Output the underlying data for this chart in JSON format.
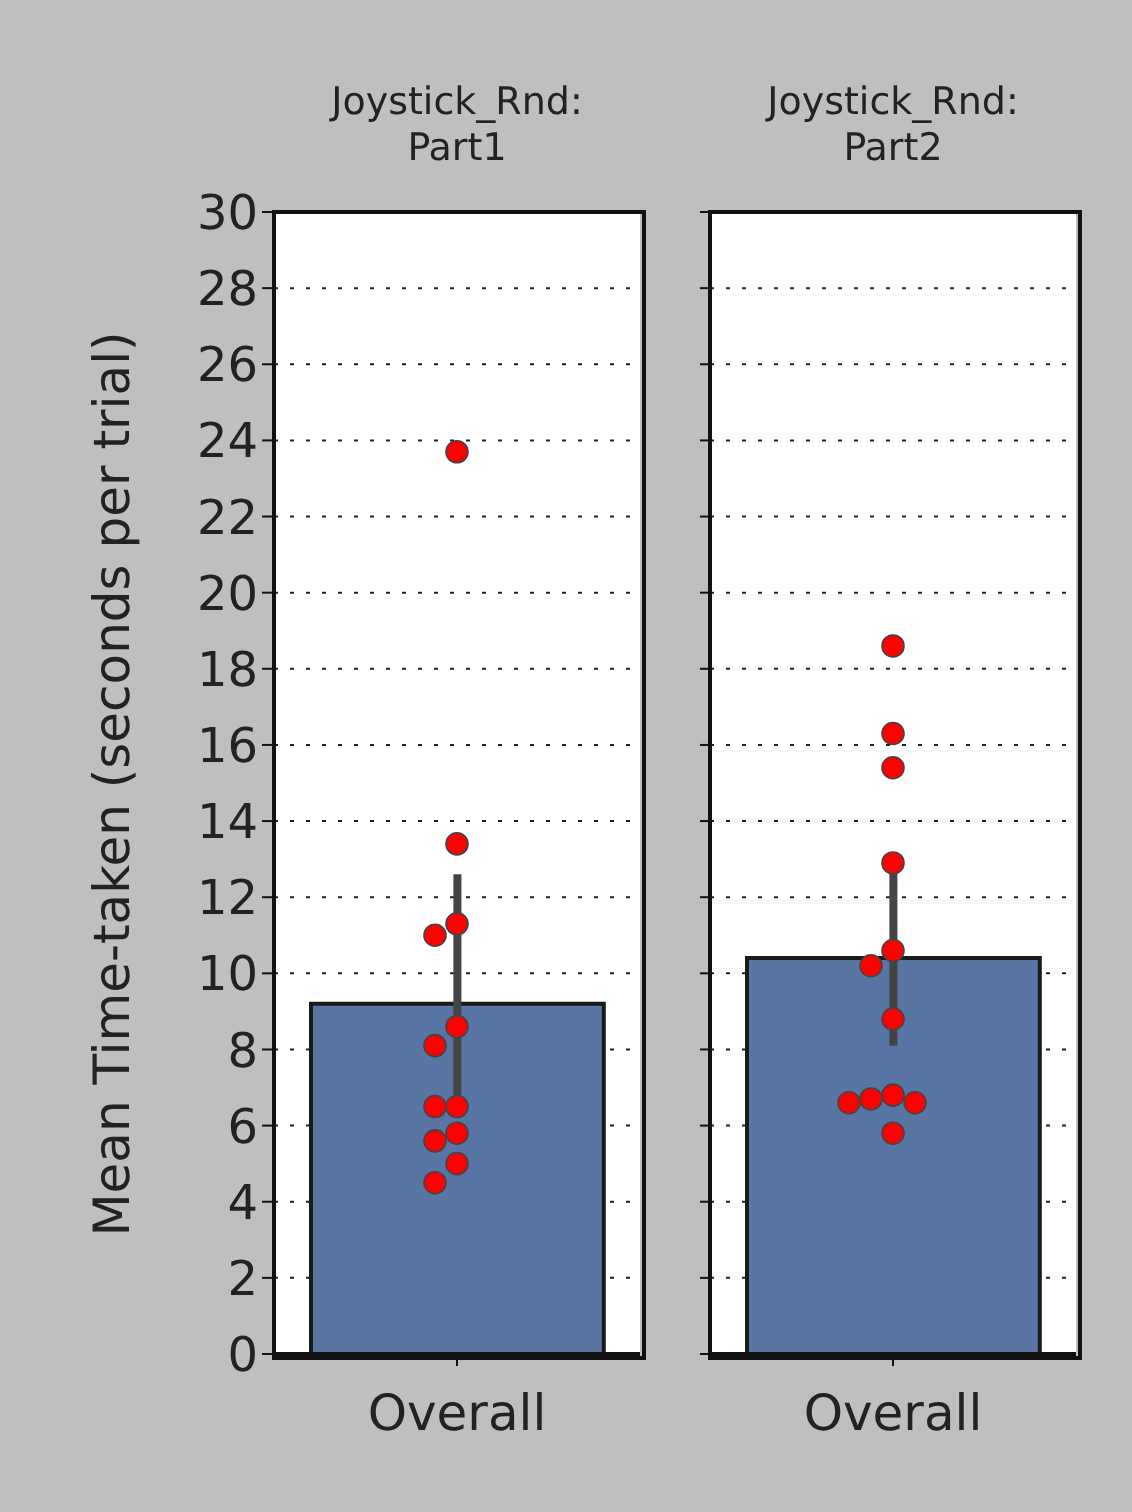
{
  "chart_data": [
    {
      "type": "bar",
      "title": "Joystick_Rnd:\nPart1",
      "ylabel": "Mean Time-taken (seconds per trial)",
      "categories": [
        "Overall"
      ],
      "ylim": [
        0,
        30
      ],
      "yticks": [
        0,
        2,
        4,
        6,
        8,
        10,
        12,
        14,
        16,
        18,
        20,
        22,
        24,
        26,
        28,
        30
      ],
      "grid": "y",
      "series": [
        {
          "color": "#5975a4",
          "values": [
            9.2
          ],
          "errors": [
            [
              6.8,
              12.6
            ]
          ]
        },
        {
          "type": "scatter",
          "color": "#ff0000",
          "marker": "circle",
          "x": [
            "Overall",
            "Overall",
            "Overall",
            "Overall",
            "Overall",
            "Overall",
            "Overall",
            "Overall",
            "Overall",
            "Overall",
            "Overall",
            "Overall"
          ],
          "values": [
            23.7,
            13.4,
            11.3,
            11.0,
            8.6,
            8.1,
            6.5,
            6.5,
            5.8,
            5.6,
            5.0,
            4.5
          ]
        }
      ]
    },
    {
      "type": "bar",
      "title": "Joystick_Rnd:\nPart2",
      "categories": [
        "Overall"
      ],
      "ylim": [
        0,
        30
      ],
      "yticks": [
        0,
        2,
        4,
        6,
        8,
        10,
        12,
        14,
        16,
        18,
        20,
        22,
        24,
        26,
        28,
        30
      ],
      "grid": "y",
      "tick_labels": "x",
      "series": [
        {
          "color": "#5975a4",
          "values": [
            10.4
          ],
          "errors": [
            [
              8.1,
              12.8
            ]
          ]
        },
        {
          "type": "scatter",
          "color": "#ff0000",
          "marker": "circle",
          "x": [
            "Overall",
            "Overall",
            "Overall",
            "Overall",
            "Overall",
            "Overall",
            "Overall",
            "Overall",
            "Overall",
            "Overall",
            "Overall",
            "Overall"
          ],
          "values": [
            18.6,
            16.3,
            15.4,
            12.9,
            10.6,
            10.2,
            8.8,
            6.8,
            6.7,
            6.6,
            6.6,
            5.8
          ]
        }
      ]
    }
  ]
}
